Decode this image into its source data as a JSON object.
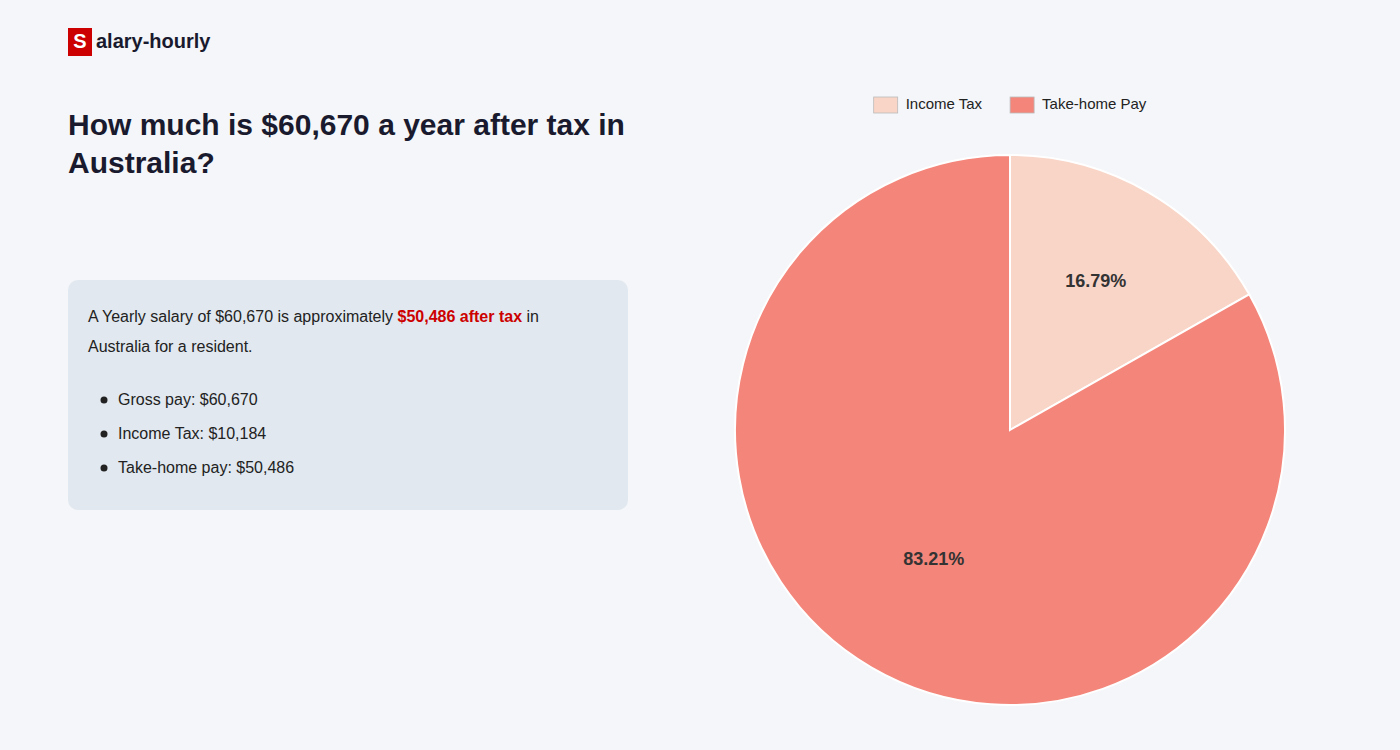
{
  "chart_data": {
    "type": "pie",
    "title": "How much is $60,670 a year after tax in Australia?",
    "categories": [
      "Income Tax",
      "Take-home Pay"
    ],
    "values": [
      16.79,
      83.21
    ],
    "value_labels": [
      "16.79%",
      "83.21%"
    ],
    "colors": [
      "#f9d5c8",
      "#f4857a"
    ],
    "data_labels": true,
    "legend": "top",
    "annotations": [
      {
        "text": "S",
        "color": "#cc0000"
      },
      {
        "text": "alary-hourly"
      },
      {
        "text": "A Yearly salary of $60,670 is approximately "
      },
      {
        "text": "$50,486 after tax",
        "color": "#cc0000"
      },
      {
        "text": " in"
      },
      {
        "text": "Australia for a resident."
      },
      {
        "text": "Gross pay: $60,670"
      },
      {
        "text": "Income Tax: $10,184"
      },
      {
        "text": "Take-home pay: $50,486"
      }
    ]
  }
}
